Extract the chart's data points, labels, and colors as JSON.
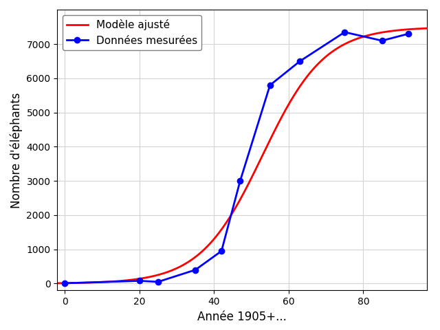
{
  "data_x": [
    0,
    20,
    25,
    35,
    42,
    47,
    55,
    63,
    75,
    85,
    92
  ],
  "data_y": [
    10,
    80,
    50,
    400,
    950,
    3000,
    5800,
    6500,
    7350,
    7100,
    7300
  ],
  "xlabel": "Année 1905+...",
  "ylabel": "Nombre d'éléphants",
  "legend_model": "Modèle ajusté",
  "legend_data": "Données mesurées",
  "model_color": "red",
  "data_color": "blue",
  "K": 7500,
  "r": 0.12,
  "t_mid": 53,
  "xlim": [
    -2,
    97
  ],
  "ylim": [
    -200,
    8000
  ],
  "xticks": [
    0,
    20,
    40,
    60,
    80
  ],
  "yticks": [
    0,
    1000,
    2000,
    3000,
    4000,
    5000,
    6000,
    7000
  ]
}
